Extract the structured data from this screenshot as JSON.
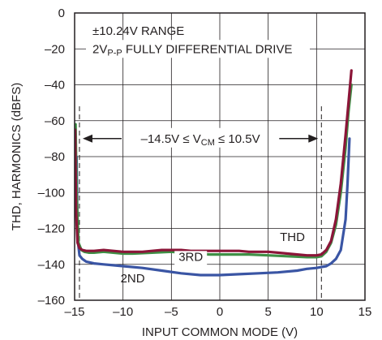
{
  "chart_data": {
    "type": "line",
    "xlabel": "INPUT COMMON MODE (V)",
    "ylabel": "THD, HARMONICS (dBFS)",
    "xlim": [
      -15,
      15
    ],
    "ylim": [
      -160,
      0
    ],
    "xticks": [
      -15,
      -10,
      -5,
      0,
      5,
      10,
      15
    ],
    "yticks": [
      0,
      -20,
      -40,
      -60,
      -80,
      -100,
      -120,
      -140,
      -160
    ],
    "xtick_labels": [
      "–15",
      "–10",
      "–5",
      "0",
      "5",
      "10",
      "15"
    ],
    "ytick_labels": [
      "0",
      "–20",
      "–40",
      "–60",
      "–80",
      "–100",
      "–120",
      "–140",
      "–160"
    ],
    "grid": true,
    "annotations": {
      "line1": "±10.24V RANGE",
      "line2_pre": "2V",
      "line2_sub": "P-P",
      "line2_post": " FULLY DIFFERENTIAL DRIVE",
      "range_pre": "–14.5V ≤ V",
      "range_sub": "CM",
      "range_post": " ≤ 10.5V",
      "range_min": -14.5,
      "range_max": 10.5
    },
    "series": [
      {
        "name": "2ND",
        "color": "#3a55a4",
        "x": [
          -14.8,
          -14.7,
          -14.5,
          -14.2,
          -13.8,
          -13,
          -12,
          -11,
          -10,
          -8,
          -6,
          -4,
          -2,
          0,
          2,
          4,
          6,
          8,
          9,
          10,
          10.5,
          11,
          11.5,
          12,
          12.5,
          13,
          13.2,
          13.4
        ],
        "y": [
          -80,
          -125,
          -135,
          -137,
          -138.5,
          -139.5,
          -140,
          -140.5,
          -141,
          -142,
          -143.5,
          -145,
          -146,
          -146,
          -145.5,
          -145,
          -144.5,
          -143.5,
          -142.5,
          -142,
          -141.5,
          -141,
          -139.5,
          -137,
          -132,
          -115,
          -95,
          -70
        ]
      },
      {
        "name": "3RD",
        "color": "#3f8f46",
        "x": [
          -14.9,
          -14.8,
          -14.6,
          -14.3,
          -14,
          -13.5,
          -13,
          -12,
          -11,
          -10,
          -9,
          -7,
          -5,
          -3,
          -1,
          1,
          3,
          5,
          7,
          9,
          10,
          10.5,
          11,
          11.5,
          12,
          12.5,
          13,
          13.3,
          13.6
        ],
        "y": [
          -62,
          -100,
          -128,
          -132,
          -133,
          -133.5,
          -133.5,
          -133,
          -133.5,
          -134,
          -134,
          -133.5,
          -133,
          -134,
          -134.5,
          -134.5,
          -134.5,
          -135,
          -135.5,
          -136,
          -136,
          -135.5,
          -133,
          -128,
          -118,
          -100,
          -75,
          -55,
          -40
        ]
      },
      {
        "name": "THD",
        "color": "#8b1538",
        "x": [
          -14.95,
          -14.85,
          -14.7,
          -14.5,
          -14.2,
          -13.8,
          -13,
          -12,
          -11,
          -10,
          -9,
          -8,
          -7,
          -6,
          -5,
          -4,
          -3,
          -2,
          -1,
          0,
          1,
          2,
          3,
          4,
          5,
          6,
          7,
          8,
          9,
          9.5,
          10,
          10.5,
          11,
          11.5,
          12,
          12.5,
          13,
          13.3,
          13.6
        ],
        "y": [
          -65,
          -110,
          -128,
          -131,
          -132,
          -132.5,
          -132.5,
          -132,
          -132.5,
          -133,
          -133,
          -133,
          -132.5,
          -132,
          -132,
          -132,
          -132.5,
          -132.5,
          -132.5,
          -132.5,
          -132.5,
          -132.5,
          -133,
          -133,
          -133,
          -133.5,
          -134,
          -134.5,
          -135,
          -135,
          -135,
          -134.5,
          -132,
          -127,
          -115,
          -95,
          -68,
          -50,
          -32
        ]
      }
    ],
    "curve_labels": [
      {
        "text": "THD",
        "x": 7.5,
        "y": -127
      },
      {
        "text": "3RD",
        "x": -3,
        "y": -138
      },
      {
        "text": "2ND",
        "x": -9,
        "y": -150
      }
    ]
  }
}
